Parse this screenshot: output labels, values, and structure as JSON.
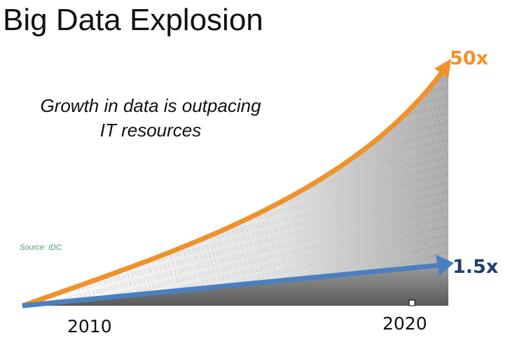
{
  "title": "Big Data Explosion",
  "subtitle": {
    "line1": "Growth in data is outpacing",
    "line2": "IT resources"
  },
  "source": "Source: IDC",
  "series": [
    {
      "label": "50x",
      "color": "#f0922b"
    },
    {
      "label": "1.5x",
      "color": "#4a7fc0",
      "label_color": "#1f3f6e"
    }
  ],
  "years": {
    "start": "2010",
    "end": "2020"
  }
}
